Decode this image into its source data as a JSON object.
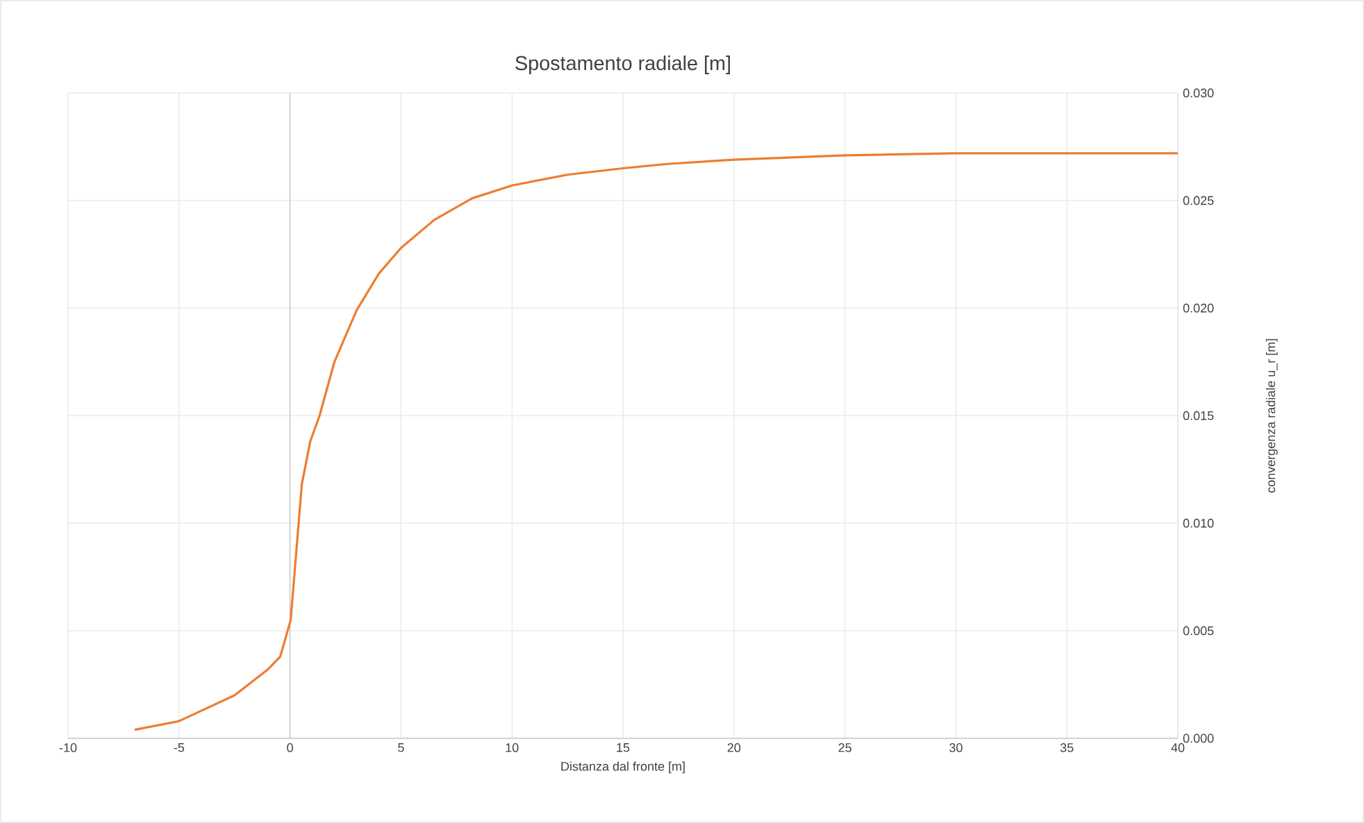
{
  "chart_data": {
    "type": "line",
    "title": "Spostamento radiale  [m]",
    "xlabel": "Distanza dal fronte [m]",
    "ylabel": "convergenza radiale  u_r [m]",
    "x": [
      -7,
      -5,
      -2.5,
      -1,
      -0.44,
      0.03,
      0.53,
      0.91,
      1.33,
      2,
      3,
      4,
      5,
      6.5,
      8.2,
      10,
      12.5,
      15,
      17,
      20,
      25,
      30,
      35,
      40
    ],
    "series": [
      {
        "color": "#ed7d31",
        "values": [
          0.0004,
          0.0008,
          0.002,
          0.0032,
          0.0038,
          0.0055,
          0.0118,
          0.0138,
          0.015,
          0.0175,
          0.0199,
          0.0216,
          0.0228,
          0.0241,
          0.0251,
          0.0257,
          0.0262,
          0.0265,
          0.0267,
          0.0269,
          0.0271,
          0.0272,
          0.0272,
          0.0272
        ]
      }
    ],
    "xlim": [
      -10,
      40
    ],
    "xticks": [
      -10,
      -5,
      0,
      5,
      10,
      15,
      20,
      25,
      30,
      35,
      40
    ],
    "ylim": [
      0,
      0.03
    ],
    "yticks": [
      {
        "value": 0,
        "label": "0.000"
      },
      {
        "value": 0.005,
        "label": "0.005"
      },
      {
        "value": 0.01,
        "label": "0.010"
      },
      {
        "value": 0.015,
        "label": "0.015"
      },
      {
        "value": 0.02,
        "label": "0.020"
      },
      {
        "value": 0.025,
        "label": "0.025"
      },
      {
        "value": 0.03,
        "label": "0.030"
      }
    ],
    "grid": true,
    "marker": "none",
    "line_style": "solid"
  }
}
